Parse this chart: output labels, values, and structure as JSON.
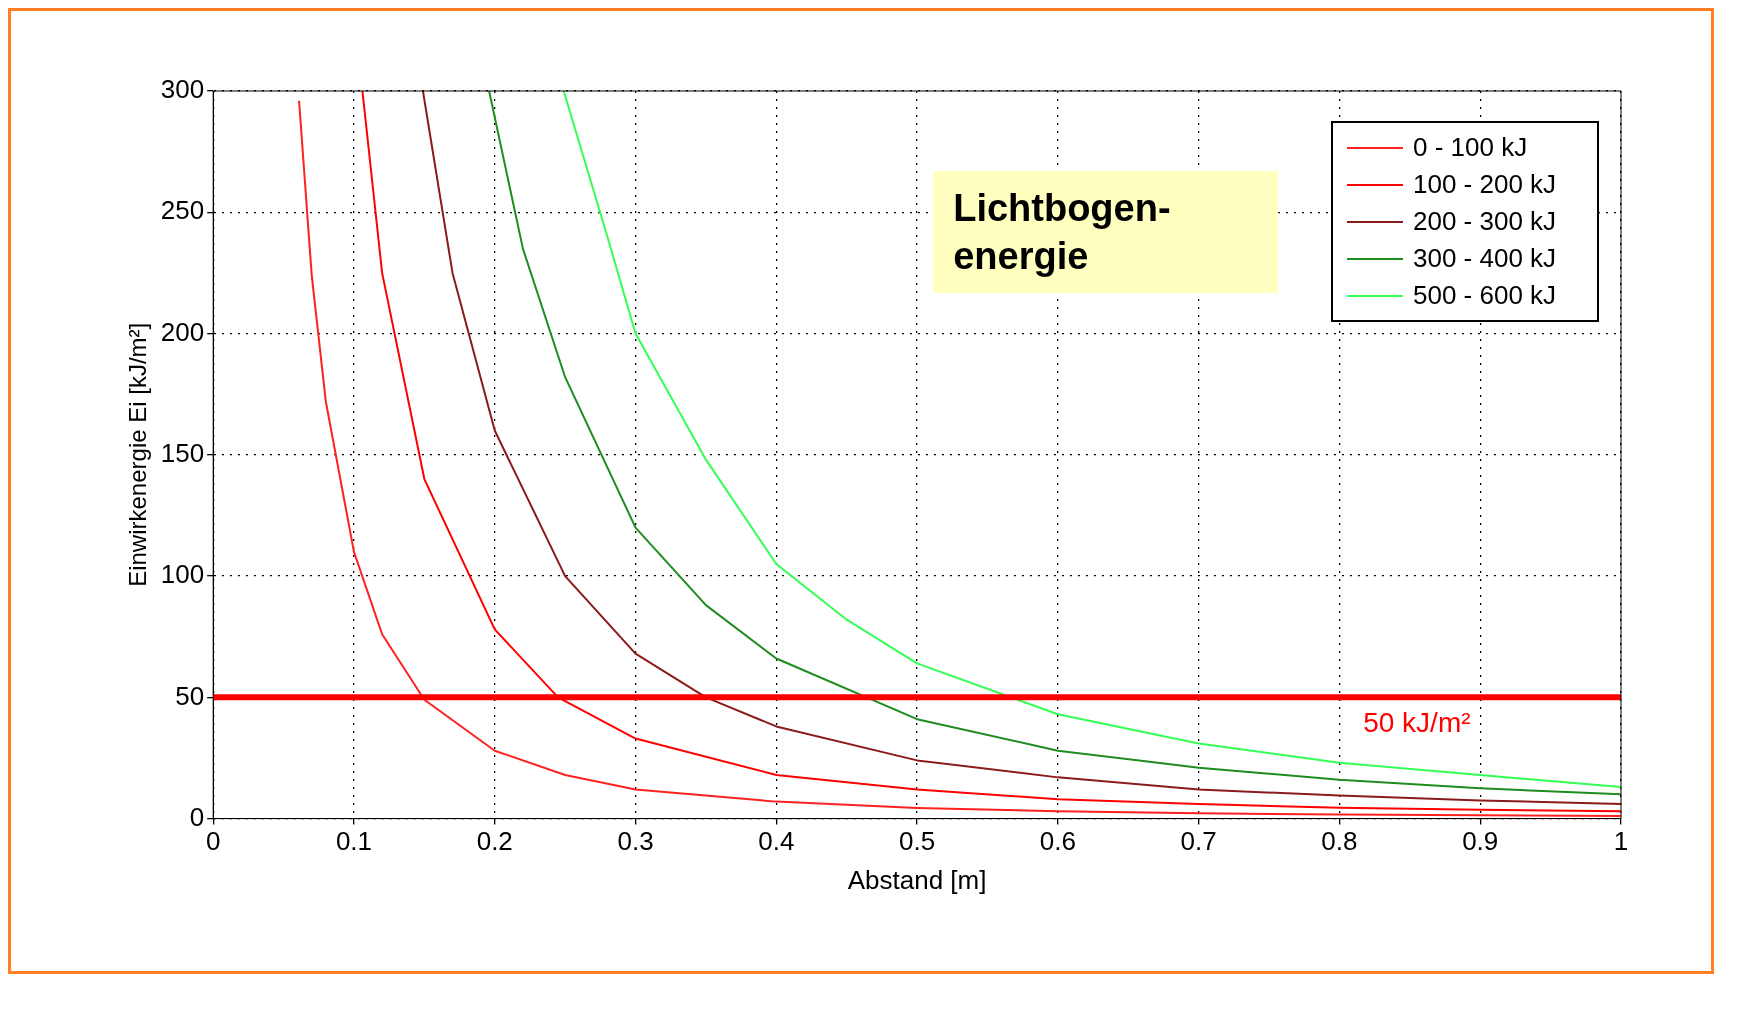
{
  "chart_data": {
    "type": "line",
    "xlabel": "Abstand [m]",
    "ylabel": "Einwirkenergie Ei [kJ/m²]",
    "xlim": [
      0,
      1
    ],
    "xticks": [
      0,
      0.1,
      0.2,
      0.3,
      0.4,
      0.5,
      0.6,
      0.7,
      0.8,
      0.9,
      1
    ],
    "ylim": [
      0,
      300
    ],
    "yticks": [
      0,
      50,
      100,
      150,
      200,
      250,
      300
    ],
    "grid": true,
    "legend": "top right",
    "marker": "none",
    "line_style": "solid",
    "series": [
      {
        "name": "0 - 100 kJ",
        "color": "#ff2020",
        "x": [
          0.061,
          0.07,
          0.08,
          0.1,
          0.12,
          0.15,
          0.2,
          0.25,
          0.3,
          0.4,
          0.5,
          0.6,
          0.7,
          0.8,
          0.9,
          1
        ],
        "values": [
          296,
          224,
          172,
          110,
          76,
          49,
          28,
          18,
          12,
          7,
          4.4,
          3,
          2.2,
          1.7,
          1.4,
          1.1
        ]
      },
      {
        "name": "100 - 200 kJ",
        "color": "#ff0000",
        "x": [
          0.106,
          0.12,
          0.15,
          0.2,
          0.245,
          0.3,
          0.4,
          0.5,
          0.6,
          0.7,
          0.8,
          0.9,
          1
        ],
        "values": [
          300,
          225,
          140,
          78,
          50,
          33,
          18,
          12,
          8,
          6,
          4.5,
          3.6,
          3
        ]
      },
      {
        "name": "200 - 300 kJ",
        "color": "#8b1a1a",
        "x": [
          0.149,
          0.17,
          0.2,
          0.25,
          0.3,
          0.35,
          0.4,
          0.5,
          0.6,
          0.7,
          0.8,
          0.9,
          1
        ],
        "values": [
          300,
          225,
          160,
          100,
          68,
          50,
          38,
          24,
          17,
          12,
          9.5,
          7.5,
          6
        ]
      },
      {
        "name": "300 - 400 kJ",
        "color": "#1e8c1e",
        "x": [
          0.196,
          0.22,
          0.25,
          0.3,
          0.35,
          0.4,
          0.5,
          0.6,
          0.7,
          0.8,
          0.9,
          1
        ],
        "values": [
          300,
          235,
          182,
          120,
          88,
          66,
          41,
          28,
          21,
          16,
          12.5,
          10
        ]
      },
      {
        "name": "500 - 600 kJ",
        "color": "#33ff55",
        "x": [
          0.249,
          0.28,
          0.3,
          0.35,
          0.4,
          0.45,
          0.5,
          0.6,
          0.7,
          0.8,
          0.9,
          1
        ],
        "values": [
          300,
          240,
          200,
          148,
          105,
          82,
          64,
          43,
          31,
          23,
          18,
          13
        ]
      }
    ],
    "ref_lines": [
      {
        "axis": "y",
        "value": 50,
        "label": "50 kJ/m²",
        "color": "#ff0000"
      }
    ],
    "annotations": [
      "Lichtbogen-energie"
    ]
  }
}
